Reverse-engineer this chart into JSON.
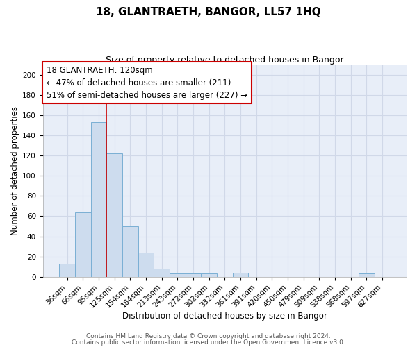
{
  "title": "18, GLANTRAETH, BANGOR, LL57 1HQ",
  "subtitle": "Size of property relative to detached houses in Bangor",
  "xlabel": "Distribution of detached houses by size in Bangor",
  "ylabel": "Number of detached properties",
  "categories": [
    "36sqm",
    "66sqm",
    "95sqm",
    "125sqm",
    "154sqm",
    "184sqm",
    "213sqm",
    "243sqm",
    "272sqm",
    "302sqm",
    "332sqm",
    "361sqm",
    "391sqm",
    "420sqm",
    "450sqm",
    "479sqm",
    "509sqm",
    "538sqm",
    "568sqm",
    "597sqm",
    "627sqm"
  ],
  "values": [
    13,
    64,
    153,
    122,
    50,
    24,
    8,
    3,
    3,
    3,
    0,
    4,
    0,
    0,
    0,
    0,
    0,
    0,
    0,
    3,
    0
  ],
  "bar_color": "#cddcee",
  "bar_edge_color": "#7aafd4",
  "vline_color": "#cc0000",
  "vline_pos": 2.5,
  "ylim": [
    0,
    210
  ],
  "yticks": [
    0,
    20,
    40,
    60,
    80,
    100,
    120,
    140,
    160,
    180,
    200
  ],
  "annotation_line1": "18 GLANTRAETH: 120sqm",
  "annotation_line2": "← 47% of detached houses are smaller (211)",
  "annotation_line3": "51% of semi-detached houses are larger (227) →",
  "footer_line1": "Contains HM Land Registry data © Crown copyright and database right 2024.",
  "footer_line2": "Contains public sector information licensed under the Open Government Licence v3.0.",
  "plot_bg_color": "#e8eef8",
  "fig_bg_color": "#ffffff",
  "grid_color": "#d0d8e8",
  "title_fontsize": 11,
  "subtitle_fontsize": 9,
  "xlabel_fontsize": 8.5,
  "ylabel_fontsize": 8.5,
  "tick_fontsize": 7.5,
  "footer_fontsize": 6.5
}
